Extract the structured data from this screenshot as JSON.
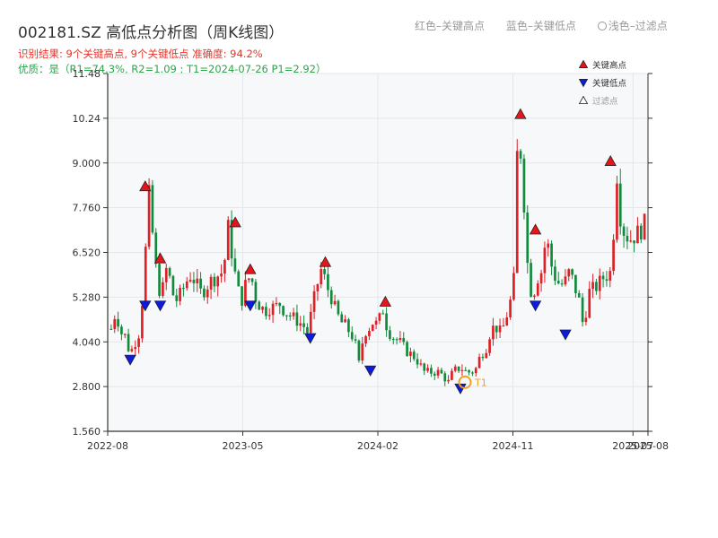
{
  "header": {
    "title": "002181.SZ 高低点分析图（周K线图）",
    "result": "识别结果: 9个关键高点, 9个关键低点  准确度: 94.2%",
    "quality": "优质：是（R1=74.3%, R2=1.09 ; T1=2024-07-26 P1=2.92）"
  },
  "top_legend": {
    "red": "红色–关键高点",
    "blue": "蓝色–关键低点",
    "light": "浅色–过滤点"
  },
  "colors": {
    "up": "#dd1f26",
    "down": "#128a3c",
    "high_marker": "#e8141b",
    "low_marker": "#0a1be6",
    "highlight_ring": "#f0a020",
    "plot_bg": "#f7f8fa",
    "grid": "#e3e6ea"
  },
  "chart_data": {
    "type": "candlestick",
    "x_ticks": [
      "2022-08",
      "2023-05",
      "2024-02",
      "2024-11",
      "2025-07",
      "2025-08"
    ],
    "ylim": [
      1.56,
      11.48
    ],
    "y_ticks": [
      "1.560",
      "2.800",
      "4.040",
      "5.280",
      "6.520",
      "7.760",
      "9.000",
      "10.24",
      "11.48"
    ],
    "legend": {
      "high": "关键高点",
      "low": "关键低点",
      "filtered": "过滤点",
      "position": "top-right"
    },
    "annotation": {
      "label": "T1",
      "date": "2024-07-26",
      "price": 2.92
    },
    "anchors": [
      4.4,
      4.9,
      4.3,
      4.2,
      3.7,
      4.0,
      4.3,
      5.7,
      8.2,
      6.8,
      5.5,
      5.5,
      6.2,
      5.4,
      5.2,
      5.4,
      5.7,
      5.9,
      5.7,
      5.4,
      5.5,
      5.7,
      5.8,
      5.9,
      6.0,
      7.2,
      6.3,
      5.5,
      5.2,
      5.8,
      5.8,
      5.2,
      5.0,
      4.9,
      5.0,
      5.0,
      5.1,
      4.9,
      4.8,
      4.7,
      4.6,
      4.5,
      4.3,
      5.0,
      5.6,
      6.1,
      5.6,
      5.3,
      4.9,
      4.6,
      4.5,
      4.3,
      4.1,
      3.4,
      4.3,
      4.4,
      4.6,
      4.5,
      5.0,
      4.4,
      4.2,
      4.1,
      4.0,
      3.8,
      3.7,
      3.6,
      3.4,
      3.2,
      3.2,
      3.2,
      3.2,
      3.1,
      2.9,
      3.2,
      3.3,
      3.3,
      3.2,
      3.2,
      3.3,
      3.7,
      3.8,
      4.3,
      4.5,
      4.3,
      4.5,
      5.0,
      5.5,
      10.2,
      8.5,
      6.2,
      5.2,
      5.8,
      6.0,
      7.0,
      6.2,
      5.8,
      5.6,
      5.7,
      6.0,
      5.6,
      5.2,
      4.4,
      5.4,
      5.5,
      5.6,
      5.8,
      5.9,
      6.0,
      8.9,
      7.3,
      7.0,
      6.9,
      7.0,
      7.1,
      7.3
    ],
    "highs": [
      {
        "date": "2022-10",
        "price": 8.2
      },
      {
        "date": "2022-11",
        "price": 6.2
      },
      {
        "date": "2023-04",
        "price": 7.2
      },
      {
        "date": "2023-05",
        "price": 5.9
      },
      {
        "date": "2023-10",
        "price": 6.1
      },
      {
        "date": "2024-02",
        "price": 5.0
      },
      {
        "date": "2024-11",
        "price": 10.2
      },
      {
        "date": "2024-12",
        "price": 7.0
      },
      {
        "date": "2025-05",
        "price": 8.9
      }
    ],
    "lows": [
      {
        "date": "2022-09",
        "price": 3.7
      },
      {
        "date": "2022-10",
        "price": 5.2
      },
      {
        "date": "2022-11",
        "price": 5.2
      },
      {
        "date": "2023-05",
        "price": 5.2
      },
      {
        "date": "2023-09",
        "price": 4.3
      },
      {
        "date": "2024-01",
        "price": 3.4
      },
      {
        "date": "2024-07",
        "price": 2.9
      },
      {
        "date": "2024-12",
        "price": 5.2
      },
      {
        "date": "2025-02",
        "price": 4.4
      }
    ]
  }
}
